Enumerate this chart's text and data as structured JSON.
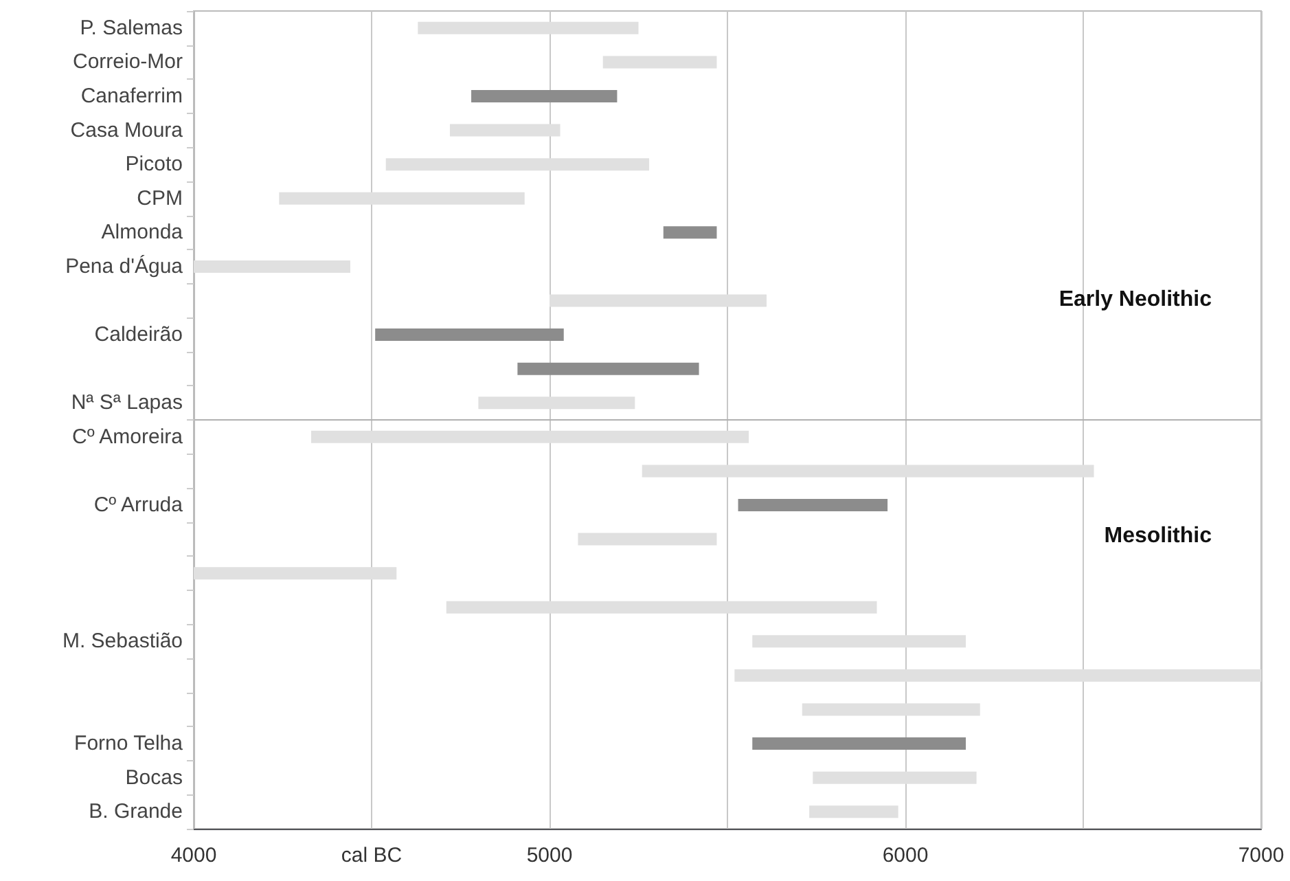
{
  "chart_data": {
    "type": "bar",
    "orientation": "horizontal",
    "categories": [
      "P. Salemas",
      "Correio-Mor",
      "Canaferrim",
      "Casa Moura",
      "Picoto",
      "CPM",
      "Almonda",
      "Pena d'Água",
      null,
      "Caldeirão",
      null,
      "Nª Sª Lapas",
      "Cº Amoreira",
      null,
      "Cº Arruda",
      null,
      null,
      null,
      "M. Sebastião",
      null,
      null,
      "Forno Telha",
      "Bocas",
      "B. Grande"
    ],
    "base": [
      4630,
      5150,
      4780,
      4720,
      4540,
      4240,
      5320,
      4000,
      5000,
      4510,
      4910,
      4800,
      4330,
      5260,
      5530,
      5080,
      4000,
      4710,
      5570,
      5520,
      5710,
      5570,
      5740,
      5730
    ],
    "values": [
      620,
      320,
      410,
      310,
      740,
      690,
      150,
      440,
      610,
      530,
      510,
      440,
      1230,
      1270,
      420,
      390,
      570,
      1210,
      600,
      1480,
      500,
      600,
      460,
      250
    ],
    "colors": [
      "#e0e0e0",
      "#e0e0e0",
      "#8c8c8c",
      "#e0e0e0",
      "#e0e0e0",
      "#e0e0e0",
      "#8c8c8c",
      "#e0e0e0",
      "#e0e0e0",
      "#8c8c8c",
      "#8c8c8c",
      "#e0e0e0",
      "#e0e0e0",
      "#e0e0e0",
      "#8c8c8c",
      "#e0e0e0",
      "#e0e0e0",
      "#e0e0e0",
      "#e0e0e0",
      "#e0e0e0",
      "#e0e0e0",
      "#8c8c8c",
      "#e0e0e0",
      "#e0e0e0"
    ],
    "xlim": [
      4000,
      7000
    ],
    "xticks": [
      4000,
      {
        "value": 4500,
        "label": "cal BC"
      },
      5000,
      {
        "value": 5500,
        "label": null
      },
      6000,
      {
        "value": 6500,
        "label": null
      },
      7000
    ],
    "grid": "x",
    "ref_lines": [
      {
        "axis": "y",
        "value": "Cº Amoreira",
        "color": "#b0b0b0"
      }
    ],
    "annotations": [
      "Early Neolithic",
      "Mesolithic"
    ]
  }
}
